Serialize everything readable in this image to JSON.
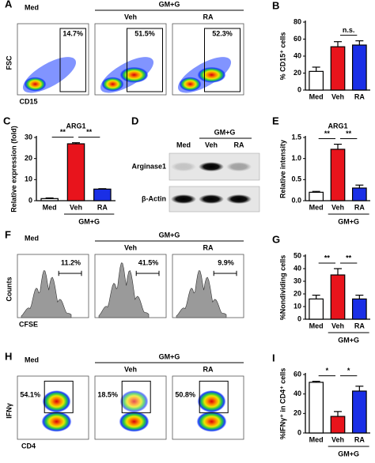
{
  "figure": {
    "A": {
      "letter": "A",
      "group": "GM+G",
      "ylabel": "FSC",
      "xlabel": "CD15",
      "plots": [
        {
          "label": "Med",
          "percent": "14.7%"
        },
        {
          "label": "Veh",
          "percent": "51.5%"
        },
        {
          "label": "RA",
          "percent": "52.3%"
        }
      ]
    },
    "D": {
      "letter": "D",
      "group": "GM+G",
      "lanes": [
        "Med",
        "Veh",
        "RA"
      ],
      "rows": [
        "Arginase1",
        "β-Actin"
      ]
    },
    "F": {
      "letter": "F",
      "group": "GM+G",
      "ylabel": "Counts",
      "xlabel": "CFSE",
      "plots": [
        {
          "label": "Med",
          "percent": "11.2%"
        },
        {
          "label": "Veh",
          "percent": "41.5%"
        },
        {
          "label": "RA",
          "percent": "9.9%"
        }
      ]
    },
    "H": {
      "letter": "H",
      "group": "GM+G",
      "ylabel": "IFNγ",
      "xlabel": "CD4",
      "plots": [
        {
          "label": "Med",
          "percent": "54.1%"
        },
        {
          "label": "Veh",
          "percent": "18.5%"
        },
        {
          "label": "RA",
          "percent": "50.8%"
        }
      ]
    }
  },
  "chart_data": [
    {
      "type": "bar",
      "letter": "B",
      "ylabel": "% CD15⁺ cells",
      "categories": [
        "Med",
        "Veh",
        "RA"
      ],
      "colors": [
        "#ffffff",
        "#e8141c",
        "#1a2fe6"
      ],
      "values": [
        22,
        51,
        53
      ],
      "errors": [
        5,
        6,
        5
      ],
      "ylim": [
        0,
        80
      ],
      "yticks": [
        0,
        20,
        40,
        60,
        80
      ],
      "annotations": [
        "n.s."
      ]
    },
    {
      "type": "bar",
      "letter": "C",
      "title": "ARG1",
      "ylabel": "Relative expression (fold)",
      "categories": [
        "Med",
        "Veh",
        "RA"
      ],
      "colors": [
        "#ffffff",
        "#e8141c",
        "#1a2fe6"
      ],
      "values": [
        1,
        27,
        5.5
      ],
      "errors": [
        0.3,
        0.5,
        0.2
      ],
      "ylim": [
        0,
        30
      ],
      "yticks": [
        0,
        10,
        20,
        30
      ],
      "annotations": [
        "**",
        "**"
      ],
      "group": "GM+G"
    },
    {
      "type": "bar",
      "letter": "E",
      "title": "ARG1",
      "ylabel": "Relative intensity",
      "categories": [
        "Med",
        "Veh",
        "RA"
      ],
      "colors": [
        "#ffffff",
        "#e8141c",
        "#1a2fe6"
      ],
      "values": [
        0.2,
        1.22,
        0.3
      ],
      "errors": [
        0.02,
        0.12,
        0.07
      ],
      "ylim": [
        0,
        1.5
      ],
      "yticks": [
        {
          "value": 0,
          "label": "0.0"
        },
        {
          "value": 0.5,
          "label": "0.5"
        },
        {
          "value": 1,
          "label": "1.0"
        },
        {
          "value": 1.5,
          "label": "1.5"
        }
      ],
      "annotations": [
        "**",
        "**"
      ],
      "group": "GM+G"
    },
    {
      "type": "bar",
      "letter": "G",
      "ylabel": "%Nondividing cells",
      "categories": [
        "Med",
        "Veh",
        "RA"
      ],
      "colors": [
        "#ffffff",
        "#e8141c",
        "#1a2fe6"
      ],
      "values": [
        16,
        35,
        16
      ],
      "errors": [
        3,
        5,
        3
      ],
      "ylim": [
        0,
        50
      ],
      "yticks": [
        0,
        10,
        20,
        30,
        40,
        50
      ],
      "annotations": [
        "**",
        "**"
      ],
      "group": "GM+G"
    },
    {
      "type": "bar",
      "letter": "I",
      "ylabel": "%IFNγ⁺ in CD4⁺ cells",
      "categories": [
        "Med",
        "Veh",
        "RA"
      ],
      "colors": [
        "#ffffff",
        "#e8141c",
        "#1a2fe6"
      ],
      "values": [
        52,
        17,
        43
      ],
      "errors": [
        1,
        5,
        5
      ],
      "ylim": [
        0,
        60
      ],
      "yticks": [
        0,
        20,
        40,
        60
      ],
      "annotations": [
        "*",
        "*"
      ],
      "group": "GM+G"
    }
  ]
}
